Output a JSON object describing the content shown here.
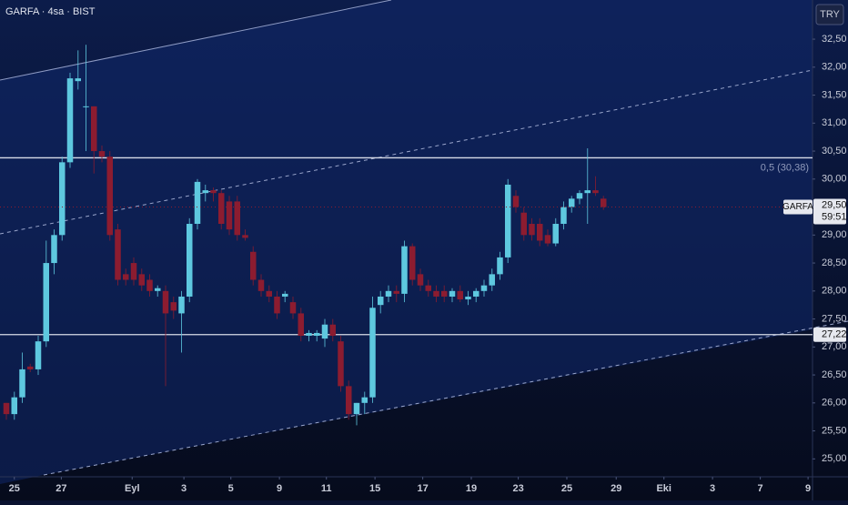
{
  "chart_data": {
    "type": "candlestick",
    "title": "GARFA · 4sa · BIST",
    "currency": "TRY",
    "up_color": "#5ec8df",
    "down_color": "#8c1c30",
    "x": [
      0,
      1,
      2,
      3,
      4,
      5,
      6,
      7,
      8,
      9,
      10,
      11,
      12,
      13,
      14,
      15,
      16,
      17,
      18,
      19,
      20,
      21,
      22,
      23,
      24,
      25,
      26,
      27,
      28,
      29,
      30,
      31,
      32,
      33,
      34,
      35,
      36,
      37,
      38,
      39,
      40,
      41,
      42,
      43,
      44,
      45,
      46,
      47,
      48,
      49,
      50,
      51,
      52,
      53,
      54,
      55,
      56,
      57,
      58,
      59,
      60,
      61,
      62,
      63,
      64,
      65,
      66,
      67,
      68,
      69,
      70,
      71,
      72,
      73,
      74,
      75
    ],
    "open": [
      26.0,
      25.8,
      26.1,
      26.65,
      26.6,
      27.1,
      28.5,
      29.0,
      30.3,
      31.75,
      31.3,
      31.3,
      30.5,
      30.4,
      29.1,
      28.3,
      28.5,
      28.3,
      28.2,
      28.0,
      28.0,
      27.8,
      27.6,
      27.9,
      29.2,
      29.75,
      29.8,
      29.75,
      29.6,
      29.6,
      29.0,
      28.7,
      28.2,
      28.0,
      27.9,
      27.9,
      27.8,
      27.6,
      27.2,
      27.2,
      27.15,
      27.4,
      27.1,
      26.3,
      25.8,
      26.0,
      26.1,
      27.75,
      27.9,
      28.0,
      27.95,
      28.8,
      28.3,
      28.1,
      28.0,
      28.0,
      27.9,
      28.0,
      27.85,
      27.9,
      28.0,
      28.1,
      28.3,
      28.6,
      29.7,
      29.4,
      29.2,
      29.2,
      29.0,
      28.85,
      29.2,
      29.5,
      29.65,
      29.75,
      29.8,
      29.65
    ],
    "high": [
      26.0,
      26.2,
      26.9,
      26.7,
      27.2,
      28.9,
      29.1,
      30.4,
      31.9,
      32.3,
      32.4,
      31.3,
      30.6,
      30.5,
      29.2,
      28.4,
      28.6,
      28.4,
      28.3,
      28.1,
      28.1,
      27.9,
      28.0,
      29.3,
      30.0,
      29.9,
      29.85,
      29.8,
      29.7,
      29.7,
      29.1,
      28.8,
      28.3,
      28.1,
      28.0,
      28.0,
      27.9,
      27.7,
      27.3,
      27.3,
      27.5,
      27.5,
      27.2,
      26.4,
      26.0,
      26.2,
      27.9,
      28.0,
      28.1,
      28.1,
      28.9,
      28.85,
      28.4,
      28.2,
      28.1,
      28.1,
      28.05,
      28.1,
      28.0,
      28.05,
      28.2,
      28.4,
      28.7,
      30.0,
      29.8,
      29.5,
      29.3,
      29.3,
      29.1,
      29.3,
      29.6,
      29.7,
      29.8,
      30.55,
      30.05,
      29.7
    ],
    "low": [
      25.7,
      25.7,
      26.0,
      26.55,
      26.5,
      27.0,
      28.3,
      28.9,
      30.2,
      31.6,
      30.5,
      30.1,
      30.3,
      28.9,
      28.1,
      28.1,
      28.1,
      28.0,
      27.9,
      27.9,
      26.3,
      27.5,
      26.9,
      27.8,
      29.1,
      29.6,
      29.6,
      29.1,
      29.0,
      28.9,
      28.9,
      28.1,
      27.9,
      27.8,
      27.5,
      27.8,
      27.5,
      27.1,
      27.1,
      27.1,
      27.0,
      27.1,
      26.2,
      25.7,
      25.6,
      25.8,
      26.0,
      27.6,
      27.8,
      27.8,
      27.8,
      28.1,
      28.0,
      27.9,
      27.8,
      27.8,
      27.8,
      27.8,
      27.75,
      27.8,
      27.9,
      28.0,
      28.2,
      28.5,
      29.4,
      28.9,
      28.9,
      28.8,
      28.8,
      28.8,
      29.1,
      29.4,
      29.55,
      29.2,
      29.7,
      29.45
    ],
    "close": [
      25.8,
      26.1,
      26.6,
      26.6,
      27.1,
      28.5,
      29.0,
      30.3,
      31.8,
      31.8,
      31.3,
      30.5,
      30.4,
      29.0,
      28.2,
      28.2,
      28.2,
      28.1,
      28.0,
      28.05,
      27.6,
      27.65,
      27.9,
      29.2,
      29.95,
      29.8,
      29.75,
      29.2,
      29.1,
      29.0,
      28.95,
      28.2,
      28.0,
      27.9,
      27.6,
      27.95,
      27.6,
      27.2,
      27.25,
      27.25,
      27.4,
      27.2,
      26.3,
      25.8,
      26.0,
      26.1,
      27.7,
      27.9,
      28.0,
      27.95,
      28.8,
      28.2,
      28.1,
      28.0,
      27.9,
      27.9,
      28.0,
      27.85,
      27.9,
      28.0,
      28.1,
      28.3,
      28.6,
      29.9,
      29.5,
      29.0,
      29.0,
      28.9,
      28.85,
      29.2,
      29.5,
      29.65,
      29.75,
      29.8,
      29.75,
      29.5
    ],
    "xlim": [
      -0.8,
      101.26
    ],
    "xticks": [
      {
        "value": 1.0,
        "label": "25"
      },
      {
        "value": 6.9,
        "label": "27"
      },
      {
        "value": 15.8,
        "label": "Eyl"
      },
      {
        "value": 22.3,
        "label": "3"
      },
      {
        "value": 28.2,
        "label": "5"
      },
      {
        "value": 34.3,
        "label": "9"
      },
      {
        "value": 40.2,
        "label": "11"
      },
      {
        "value": 46.3,
        "label": "15"
      },
      {
        "value": 52.3,
        "label": "17"
      },
      {
        "value": 58.4,
        "label": "19"
      },
      {
        "value": 64.3,
        "label": "23"
      },
      {
        "value": 70.4,
        "label": "25"
      },
      {
        "value": 76.6,
        "label": "29"
      },
      {
        "value": 82.6,
        "label": "Eki"
      },
      {
        "value": 88.7,
        "label": "3"
      },
      {
        "value": 94.7,
        "label": "7"
      },
      {
        "value": 100.7,
        "label": "9"
      }
    ],
    "ylim": [
      24.68,
      33.2
    ],
    "yticks": [
      {
        "value": 25,
        "label": "25,00"
      },
      {
        "value": 25.5,
        "label": "25,50"
      },
      {
        "value": 26,
        "label": "26,00"
      },
      {
        "value": 26.5,
        "label": "26,50"
      },
      {
        "value": 27,
        "label": "27,00"
      },
      {
        "value": 27.5,
        "label": "27,50"
      },
      {
        "value": 28,
        "label": "28,00"
      },
      {
        "value": 28.5,
        "label": "28,50"
      },
      {
        "value": 29,
        "label": "29,00"
      },
      {
        "value": 29.5,
        "label": "29,50"
      },
      {
        "value": 30,
        "label": "30,00"
      },
      {
        "value": 30.5,
        "label": "30,50"
      },
      {
        "value": 31,
        "label": "31,00"
      },
      {
        "value": 31.5,
        "label": "31,50"
      },
      {
        "value": 32,
        "label": "32,00"
      },
      {
        "value": 32.5,
        "label": "32,50"
      }
    ],
    "levels": [
      {
        "value": 30.38,
        "label": "0,5 (30,38)"
      },
      {
        "value": 27.22,
        "label": "27,22"
      }
    ],
    "last_price": {
      "name": "GARFA",
      "value": 29.5,
      "label": "29,50",
      "countdown": "59:51"
    }
  }
}
